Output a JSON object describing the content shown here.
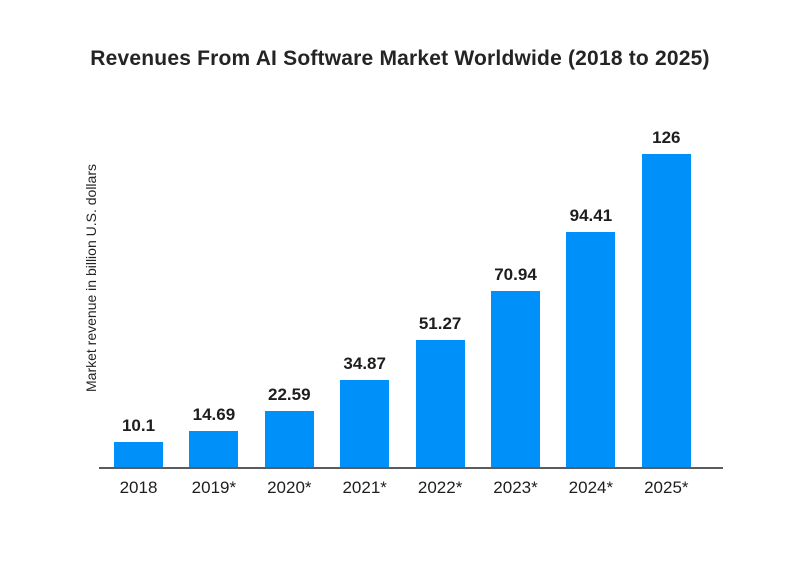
{
  "title": "Revenues From AI Software Market Worldwide (2018 to 2025)",
  "chart_data": {
    "type": "bar",
    "title": "Revenues From AI Software Market Worldwide (2018 to 2025)",
    "categories": [
      "2018",
      "2019*",
      "2020*",
      "2021*",
      "2022*",
      "2023*",
      "2024*",
      "2025*"
    ],
    "values": [
      10.1,
      14.69,
      22.59,
      34.87,
      51.27,
      70.94,
      94.41,
      126
    ],
    "value_labels": [
      "10.1",
      "14.69",
      "22.59",
      "34.87",
      "51.27",
      "70.94",
      "94.41",
      "126"
    ],
    "xlabel": "",
    "ylabel": "Market revenue in billion U.S. dollars",
    "ylim": [
      0,
      136
    ],
    "grid": false,
    "legend": false,
    "colors": {
      "bar": "#0090FA",
      "axis_line": "#5C5C5E",
      "text": "#242424",
      "background": "#FFFFFF"
    }
  }
}
